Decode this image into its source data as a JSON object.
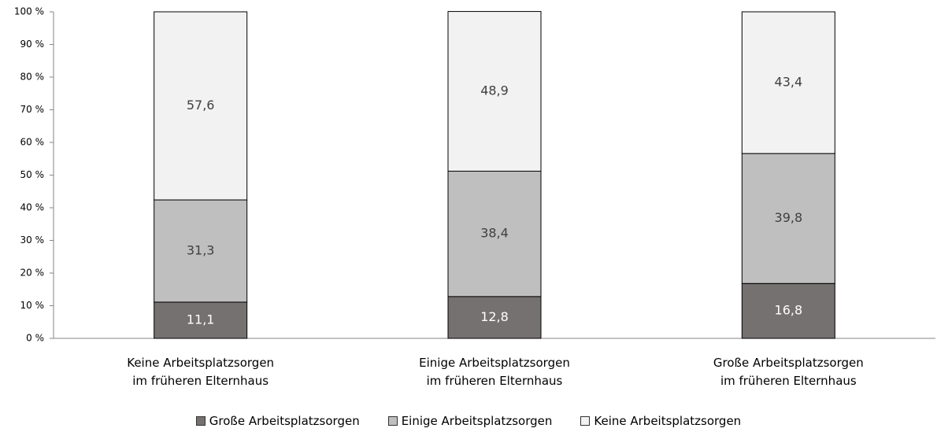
{
  "chart_data": {
    "type": "stacked_bar",
    "categories": [
      "Keine Arbeitsplatzsorgen\nim früheren Elternhaus",
      "Einige Arbeitsplatzsorgen\nim früheren Elternhaus",
      "Große Arbeitsplatzsorgen\nim früheren Elternhaus"
    ],
    "series": [
      {
        "name": "Große Arbeitsplatzsorgen",
        "color": "#767171",
        "label_color": "#ffffff",
        "values": [
          11.1,
          12.8,
          16.8
        ],
        "value_labels": [
          "11,1",
          "12,8",
          "16,8"
        ]
      },
      {
        "name": "Einige Arbeitsplatzsorgen",
        "color": "#bfbfbf",
        "label_color": "#404040",
        "values": [
          31.3,
          38.4,
          39.8
        ],
        "value_labels": [
          "31,3",
          "38,4",
          "39,8"
        ]
      },
      {
        "name": "Keine Arbeitsplatzsorgen",
        "color": "#f2f2f2",
        "label_color": "#404040",
        "values": [
          57.6,
          48.9,
          43.4
        ],
        "value_labels": [
          "57,6",
          "48,9",
          "43,4"
        ]
      }
    ],
    "ylim": [
      0,
      100
    ],
    "yticks": [
      {
        "value": 0,
        "label": "0 %"
      },
      {
        "value": 10,
        "label": "10 %"
      },
      {
        "value": 20,
        "label": "20 %"
      },
      {
        "value": 30,
        "label": "30 %"
      },
      {
        "value": 40,
        "label": "40 %"
      },
      {
        "value": 50,
        "label": "50 %"
      },
      {
        "value": 60,
        "label": "60 %"
      },
      {
        "value": 70,
        "label": "70 %"
      },
      {
        "value": 80,
        "label": "80 %"
      },
      {
        "value": 90,
        "label": "90 %"
      },
      {
        "value": 100,
        "label": "100 %"
      }
    ],
    "grid": false,
    "legend": "bottom"
  }
}
